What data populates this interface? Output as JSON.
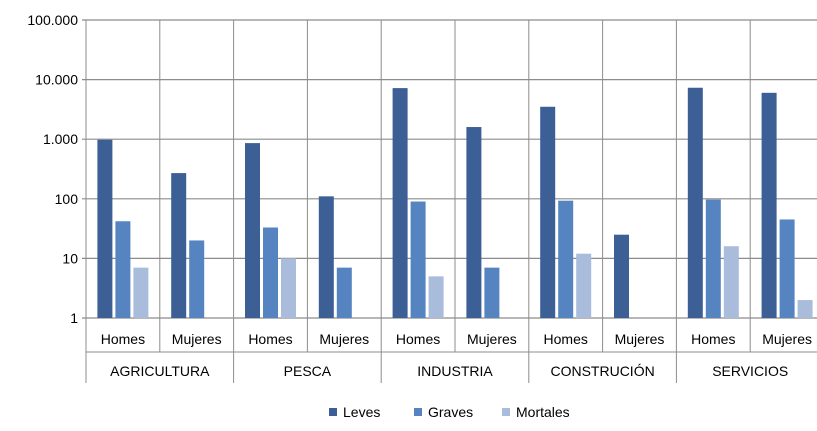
{
  "chart_data": {
    "type": "bar",
    "scale": "log",
    "ylim": [
      1,
      100000
    ],
    "yticks": [
      1,
      10,
      100,
      1000,
      10000,
      100000
    ],
    "ytick_labels": [
      "1",
      "10",
      "100",
      "1.000",
      "10.000",
      "100.000"
    ],
    "grid": true,
    "legend_position": "bottom",
    "sectors": [
      "AGRICULTURA",
      "PESCA",
      "INDUSTRIA",
      "CONSTRUCIÓN",
      "SERVICIOS"
    ],
    "subgroups": [
      "Homes",
      "Mujeres"
    ],
    "categories": [
      "Homes",
      "Mujeres",
      "Homes",
      "Mujeres",
      "Homes",
      "Mujeres",
      "Homes",
      "Mujeres",
      "Homes",
      "Mujeres"
    ],
    "series": [
      {
        "name": "Leves",
        "color": "#3c5f95",
        "values": [
          980,
          270,
          860,
          110,
          7200,
          1600,
          3500,
          25,
          7300,
          6000
        ]
      },
      {
        "name": "Graves",
        "color": "#5584c0",
        "values": [
          42,
          20,
          33,
          7,
          90,
          7,
          93,
          null,
          97,
          45
        ]
      },
      {
        "name": "Mortales",
        "color": "#a9bcdc",
        "values": [
          7,
          null,
          10,
          null,
          5,
          null,
          12,
          null,
          16,
          2
        ]
      }
    ]
  }
}
